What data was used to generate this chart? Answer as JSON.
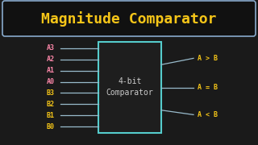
{
  "bg_color": "#1a1a1a",
  "title": "Magnitude Comparator",
  "title_color": "#f5c518",
  "title_bg": "#111111",
  "title_border_color": "#88aacc",
  "box_border_color": "#55cccc",
  "box_facecolor": "#1e1e1e",
  "box_label": "4-bit\nComparator",
  "box_label_color": "#cccccc",
  "inputs_A": [
    "A3",
    "A2",
    "A1",
    "A0"
  ],
  "inputs_B": [
    "B3",
    "B2",
    "B1",
    "B0"
  ],
  "input_A_color": "#ff88aa",
  "input_B_color": "#f5c518",
  "outputs": [
    "A > B",
    "A = B",
    "A < B"
  ],
  "output_color": "#f5c518",
  "line_color": "#99bbcc"
}
